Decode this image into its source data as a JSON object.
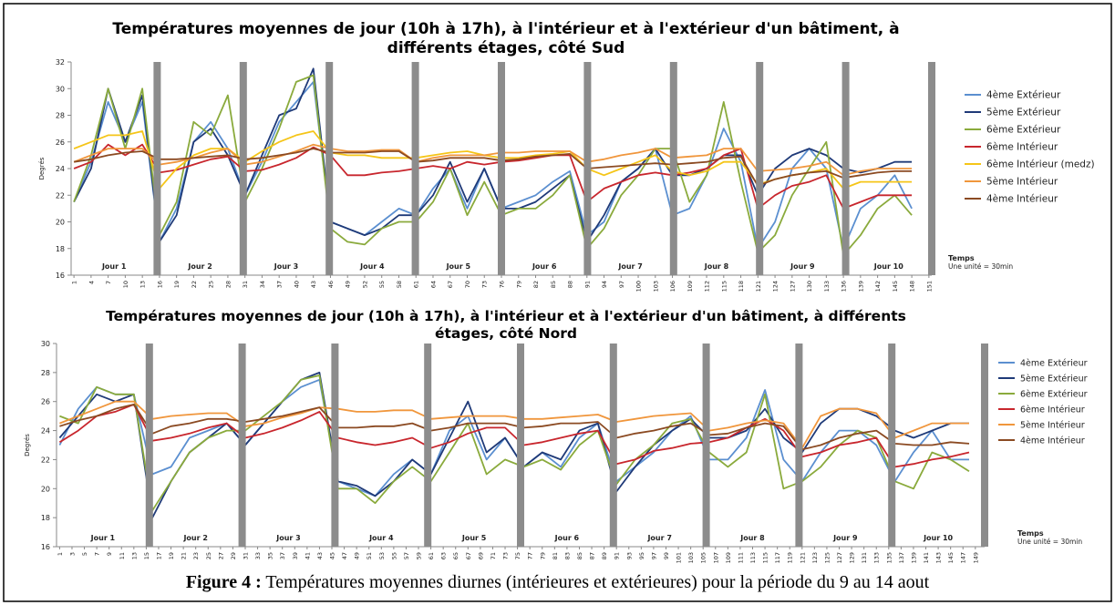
{
  "chart_data": [
    {
      "type": "line",
      "title": "Températures moyennes de jour (10h à 17h), à l'intérieur et à l'extérieur d'un bâtiment, à différents étages, côté Sud",
      "y_label": "Degrés",
      "x_label": "Temps",
      "x_note": "Une unité = 30min",
      "day_labels": [
        "Jour 1",
        "Jour 2",
        "Jour 3",
        "Jour 4",
        "Jour 5",
        "Jour 6",
        "Jour 7",
        "Jour 8",
        "Jour 9",
        "Jour 10"
      ],
      "xlim": [
        0.5,
        151.5
      ],
      "ylim": [
        16,
        32
      ],
      "yticks": [
        16,
        18,
        20,
        22,
        24,
        26,
        28,
        30,
        32
      ],
      "xticks": [
        1,
        4,
        7,
        10,
        13,
        16,
        19,
        22,
        25,
        28,
        31,
        34,
        37,
        40,
        43,
        46,
        49,
        52,
        55,
        58,
        61,
        64,
        67,
        70,
        73,
        76,
        79,
        82,
        85,
        88,
        91,
        94,
        97,
        100,
        103,
        106,
        109,
        112,
        115,
        118,
        121,
        124,
        127,
        130,
        133,
        136,
        139,
        142,
        145,
        148,
        151
      ],
      "x": [
        1,
        4,
        7,
        10,
        13,
        16,
        19,
        22,
        25,
        28,
        31,
        34,
        37,
        40,
        43,
        46,
        49,
        52,
        55,
        58,
        61,
        64,
        67,
        70,
        73,
        76,
        79,
        82,
        85,
        88,
        91,
        94,
        97,
        100,
        103,
        106,
        109,
        112,
        115,
        118,
        121,
        124,
        127,
        130,
        133,
        136,
        139,
        142,
        145,
        148
      ],
      "series": [
        {
          "name": "4ème Extérieur",
          "color": "#5b8fd0",
          "values": [
            21.5,
            24.5,
            29,
            26,
            29,
            18.5,
            21,
            26,
            27.5,
            25.5,
            22,
            24.5,
            27.5,
            29,
            30.5,
            20,
            19.5,
            19,
            20,
            21,
            20.5,
            22.5,
            24,
            21,
            24,
            21,
            21.5,
            22,
            23,
            23.8,
            19,
            20,
            23,
            24,
            25.5,
            20.5,
            21,
            23.5,
            27,
            24.5,
            18,
            20,
            24,
            25.5,
            24,
            18,
            21,
            22,
            23.5,
            21
          ]
        },
        {
          "name": "5ème Extérieur",
          "color": "#1f3a78",
          "values": [
            21.5,
            24,
            30,
            26,
            29.5,
            18.5,
            20.5,
            26,
            27,
            25,
            22,
            25,
            28,
            28.5,
            31.5,
            20,
            19.5,
            19,
            19.5,
            20.5,
            20.5,
            22,
            24.5,
            21.5,
            24,
            21,
            21,
            21.5,
            22.5,
            23.5,
            18.5,
            20.5,
            23,
            24,
            25.5,
            23.5,
            23.5,
            24,
            25,
            25,
            22,
            24,
            25,
            25.5,
            25,
            24,
            23.7,
            24,
            24.5,
            24.5
          ]
        },
        {
          "name": "6ème Extérieur",
          "color": "#8aaa3c",
          "values": [
            21.5,
            25,
            30,
            25.5,
            30,
            19,
            21.5,
            27.5,
            26.5,
            29.5,
            21.5,
            24,
            27,
            30.5,
            31,
            19.5,
            18.5,
            18.3,
            19.5,
            20,
            20,
            21.5,
            24,
            20.5,
            23,
            20.5,
            21,
            21,
            22,
            23.5,
            18,
            19.5,
            22,
            23.5,
            25.5,
            25.5,
            21.5,
            23.5,
            29,
            23,
            17.7,
            19,
            22,
            24,
            26,
            17.5,
            19,
            21,
            22,
            20.5
          ]
        },
        {
          "name": "6ème Intérieur",
          "color": "#c8262d",
          "values": [
            24,
            24.5,
            25.8,
            25,
            25.8,
            23.7,
            23.9,
            24.3,
            24.7,
            24.9,
            23.8,
            23.9,
            24.3,
            24.8,
            25.6,
            25,
            23.5,
            23.5,
            23.7,
            23.8,
            24,
            24.2,
            24,
            24.5,
            24.3,
            24.5,
            24.6,
            24.8,
            25,
            25,
            21.5,
            22.5,
            23,
            23.5,
            23.7,
            23.5,
            23.7,
            24,
            25,
            25.5,
            21,
            22,
            22.7,
            23,
            23.5,
            21,
            21.5,
            22,
            22,
            22
          ]
        },
        {
          "name": "6ème Intérieur (medz)",
          "color": "#f5c518",
          "values": [
            25.5,
            26,
            26.5,
            26.5,
            26.8,
            22.5,
            24,
            25,
            25.5,
            25.5,
            24.5,
            25.3,
            26,
            26.5,
            26.8,
            25.2,
            25,
            25,
            24.8,
            24.8,
            24.8,
            25,
            25.2,
            25.3,
            25,
            24.8,
            24.8,
            25,
            25.1,
            25.3,
            24,
            23.5,
            24,
            24.5,
            25,
            23.8,
            23.5,
            23.8,
            24.5,
            24.5,
            22.8,
            23.2,
            23.5,
            23.7,
            24,
            22.5,
            23,
            23,
            23,
            23
          ]
        },
        {
          "name": "5ème Intérieur",
          "color": "#f0963c",
          "values": [
            24.5,
            25,
            25.5,
            25.5,
            25.5,
            24.3,
            24.5,
            24.8,
            25.2,
            25.5,
            24.3,
            24.5,
            24.9,
            25.3,
            25.8,
            25.5,
            25.3,
            25.3,
            25.4,
            25.4,
            24.5,
            24.8,
            25,
            25,
            25,
            25.2,
            25.2,
            25.3,
            25.3,
            25.3,
            24.5,
            24.7,
            25,
            25.2,
            25.5,
            24.8,
            24.9,
            25,
            25.5,
            25.5,
            23.8,
            23.9,
            24,
            24.2,
            24.5,
            23.5,
            23.8,
            24,
            24,
            24
          ]
        },
        {
          "name": "4ème Intérieur",
          "color": "#8b4a22",
          "values": [
            24.5,
            24.7,
            25,
            25.2,
            25.3,
            24.7,
            24.7,
            24.8,
            24.9,
            25,
            24.7,
            24.8,
            25,
            25.2,
            25.5,
            25.2,
            25.2,
            25.2,
            25.3,
            25.3,
            24.5,
            24.6,
            24.8,
            24.8,
            24.8,
            24.6,
            24.7,
            24.9,
            25,
            25.1,
            24,
            24.1,
            24.2,
            24.3,
            24.4,
            24.3,
            24.4,
            24.5,
            24.8,
            24.9,
            22.7,
            23.2,
            23.5,
            23.7,
            23.8,
            23.3,
            23.5,
            23.7,
            23.8,
            23.8
          ]
        }
      ]
    },
    {
      "type": "line",
      "title": "Températures moyennes de jour (10h à 17h), à l'intérieur et à l'extérieur d'un bâtiment, à différents étages, côté Nord",
      "y_label": "Degrés",
      "x_label": "Temps",
      "x_note": "Une unité = 30min",
      "day_labels": [
        "Jour 1",
        "Jour 2",
        "Jour 3",
        "Jour 4",
        "Jour 5",
        "Jour 6",
        "Jour 7",
        "Jour 8",
        "Jour 9",
        "Jour 10"
      ],
      "xlim": [
        0.5,
        150.5
      ],
      "ylim": [
        16,
        30
      ],
      "yticks": [
        16,
        18,
        20,
        22,
        24,
        26,
        28,
        30
      ],
      "xticks": [
        1,
        3,
        5,
        7,
        9,
        11,
        13,
        15,
        17,
        19,
        21,
        23,
        25,
        27,
        29,
        31,
        33,
        35,
        37,
        39,
        41,
        43,
        45,
        47,
        49,
        51,
        53,
        55,
        57,
        59,
        61,
        63,
        65,
        67,
        69,
        71,
        73,
        75,
        77,
        79,
        81,
        83,
        85,
        87,
        89,
        91,
        93,
        95,
        97,
        99,
        101,
        103,
        105,
        107,
        109,
        111,
        113,
        115,
        117,
        119,
        121,
        123,
        125,
        127,
        129,
        131,
        133,
        135,
        137,
        139,
        141,
        143,
        145,
        147,
        149
      ],
      "x": [
        1,
        4,
        7,
        10,
        13,
        16,
        19,
        22,
        25,
        28,
        31,
        34,
        37,
        40,
        43,
        46,
        49,
        52,
        55,
        58,
        61,
        64,
        67,
        70,
        73,
        76,
        79,
        82,
        85,
        88,
        91,
        94,
        97,
        100,
        103,
        106,
        109,
        112,
        115,
        118,
        121,
        124,
        127,
        130,
        133,
        136,
        139,
        142,
        145,
        148
      ],
      "series": [
        {
          "name": "4ème Extérieur",
          "color": "#5b8fd0",
          "values": [
            23,
            25.5,
            27,
            26.5,
            26.5,
            21,
            21.5,
            23.5,
            24,
            24.5,
            23,
            24.5,
            26,
            27,
            27.5,
            20.5,
            20,
            19.5,
            21,
            22,
            21,
            24,
            25,
            22,
            23.5,
            21.5,
            22.5,
            21.5,
            23.5,
            24.5,
            20.5,
            21.5,
            22.5,
            24,
            25,
            22,
            22,
            23.5,
            26.8,
            22,
            20.5,
            22.5,
            24,
            24,
            23,
            20.5,
            22.5,
            24,
            22,
            22
          ]
        },
        {
          "name": "5ème Extérieur",
          "color": "#1f3a78",
          "values": [
            23.5,
            25,
            26.5,
            26,
            26.5,
            18,
            20.5,
            22.5,
            23.5,
            24.5,
            23,
            24.5,
            26,
            27.5,
            28,
            20.5,
            20.2,
            19.5,
            20.5,
            22,
            21,
            23.5,
            26,
            22.5,
            23.5,
            21.5,
            22.5,
            22,
            24,
            24.5,
            19.8,
            21.5,
            23,
            24,
            24.8,
            23.5,
            23.5,
            24,
            25.5,
            23.5,
            22.5,
            24.5,
            25.5,
            25.5,
            25,
            24,
            23.5,
            24,
            24.5,
            24.5
          ]
        },
        {
          "name": "6ème Extérieur",
          "color": "#8aaa3c",
          "values": [
            25,
            24.5,
            27,
            26.5,
            26.5,
            18.5,
            20.5,
            22.5,
            23.5,
            24,
            24,
            25,
            26,
            27.5,
            27.8,
            20,
            20,
            19,
            20.5,
            21.5,
            20.5,
            22.5,
            24.5,
            21,
            22,
            21.5,
            22,
            21.3,
            23,
            24,
            20.3,
            22,
            23,
            24.5,
            24.8,
            22.5,
            21.5,
            22.5,
            26.5,
            20,
            20.5,
            21.5,
            23,
            24,
            23.5,
            20.5,
            20,
            22.5,
            22,
            21.2
          ]
        },
        {
          "name": "6ème Intérieur",
          "color": "#c8262d",
          "values": [
            23.2,
            24,
            25,
            25.3,
            25.8,
            23.3,
            23.5,
            23.8,
            24.2,
            24.5,
            23.5,
            23.8,
            24.2,
            24.7,
            25.3,
            23.5,
            23.2,
            23,
            23.2,
            23.5,
            22.8,
            23.2,
            23.8,
            24.2,
            24.2,
            23,
            23.2,
            23.5,
            23.8,
            24,
            21.7,
            22,
            22.6,
            22.8,
            23.1,
            23.2,
            23.5,
            24.2,
            24.8,
            24,
            22.2,
            22.5,
            23,
            23.2,
            23.5,
            21.5,
            21.7,
            22,
            22.2,
            22.5
          ]
        },
        {
          "name": "5ème Intérieur",
          "color": "#f0963c",
          "values": [
            24.5,
            25,
            25.5,
            26,
            26,
            24.8,
            25,
            25.1,
            25.2,
            25.2,
            24.3,
            24.5,
            24.9,
            25.2,
            25.6,
            25.5,
            25.3,
            25.3,
            25.4,
            25.4,
            24.8,
            24.9,
            25,
            25,
            25,
            24.8,
            24.8,
            24.9,
            25,
            25.1,
            24.6,
            24.8,
            25,
            25.1,
            25.2,
            24,
            24.2,
            24.5,
            24.7,
            24.5,
            22.8,
            25,
            25.5,
            25.5,
            25.2,
            23.5,
            24,
            24.5,
            24.5,
            24.5
          ]
        },
        {
          "name": "4ème Intérieur",
          "color": "#8b4a22",
          "values": [
            24.3,
            24.7,
            25,
            25.5,
            25.8,
            23.8,
            24.3,
            24.5,
            24.8,
            24.8,
            24.6,
            24.8,
            25,
            25.3,
            25.6,
            24.2,
            24.2,
            24.3,
            24.3,
            24.5,
            24,
            24.2,
            24.5,
            24.5,
            24.5,
            24.2,
            24.3,
            24.5,
            24.5,
            24.6,
            23.5,
            23.8,
            24,
            24.3,
            24.5,
            23.7,
            23.8,
            24.2,
            24.5,
            24.3,
            22.7,
            23,
            23.5,
            23.8,
            24,
            23.1,
            23,
            23,
            23.2,
            23.1
          ]
        }
      ]
    }
  ],
  "caption": {
    "label": "Figure 4 :",
    "text": "Températures moyennes diurnes (intérieures et extérieures) pour la période du 9 au 14 aout"
  }
}
